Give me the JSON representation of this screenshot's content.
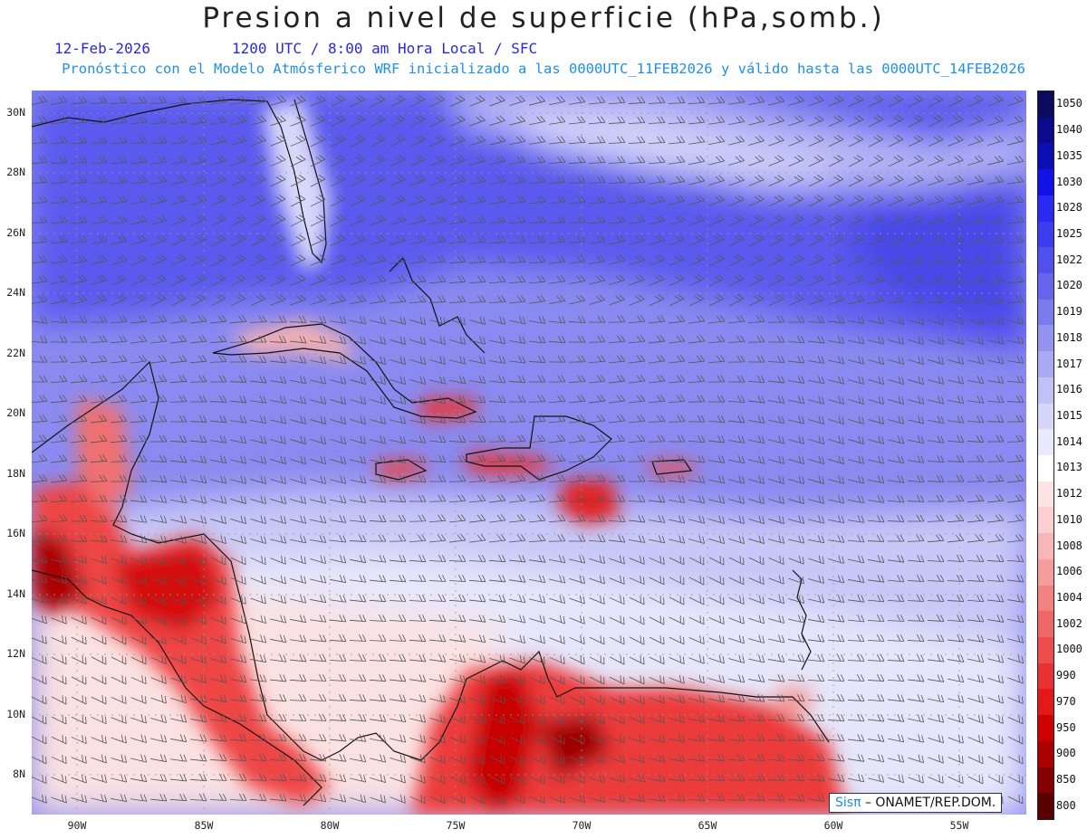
{
  "title": "Presion a nivel de superficie (hPa,somb.)",
  "date": "12-Feb-2026",
  "time_line": "1200 UTC / 8:00 am Hora Local / SFC",
  "forecast_line": "Pronóstico con el Modelo Atmósferico WRF inicializado a las 0000UTC_11FEB2026 y válido hasta las  0000UTC_14FEB2026",
  "lat_labels": [
    "30N",
    "28N",
    "26N",
    "24N",
    "22N",
    "20N",
    "18N",
    "16N",
    "14N",
    "12N",
    "10N",
    "8N"
  ],
  "lon_labels": [
    "90W",
    "85W",
    "80W",
    "75W",
    "70W",
    "65W",
    "60W",
    "55W"
  ],
  "colorbar": {
    "labels": [
      "1050",
      "1040",
      "1035",
      "1030",
      "1028",
      "1025",
      "1022",
      "1020",
      "1019",
      "1018",
      "1017",
      "1016",
      "1015",
      "1014",
      "1013",
      "1012",
      "1010",
      "1008",
      "1006",
      "1004",
      "1002",
      "1000",
      "990",
      "970",
      "950",
      "900",
      "850",
      "800"
    ],
    "colors": [
      "#0b0b5e",
      "#0a0a8c",
      "#0d0db4",
      "#1212e6",
      "#2a2af2",
      "#3d3df0",
      "#5050ec",
      "#6464ec",
      "#7b7bee",
      "#9393f0",
      "#aaaaf4",
      "#c1c1f6",
      "#d6d6f9",
      "#eaeafc",
      "#ffffff",
      "#fde4e4",
      "#fbcfcf",
      "#f8b6b6",
      "#f59d9d",
      "#f28282",
      "#ef6868",
      "#ec4d4d",
      "#e83232",
      "#e31818",
      "#cf0000",
      "#aa0000",
      "#850000",
      "#5a0000"
    ]
  },
  "credit": {
    "brand": "Sisπ",
    "text": " – ONAMET/REP.DOM."
  }
}
